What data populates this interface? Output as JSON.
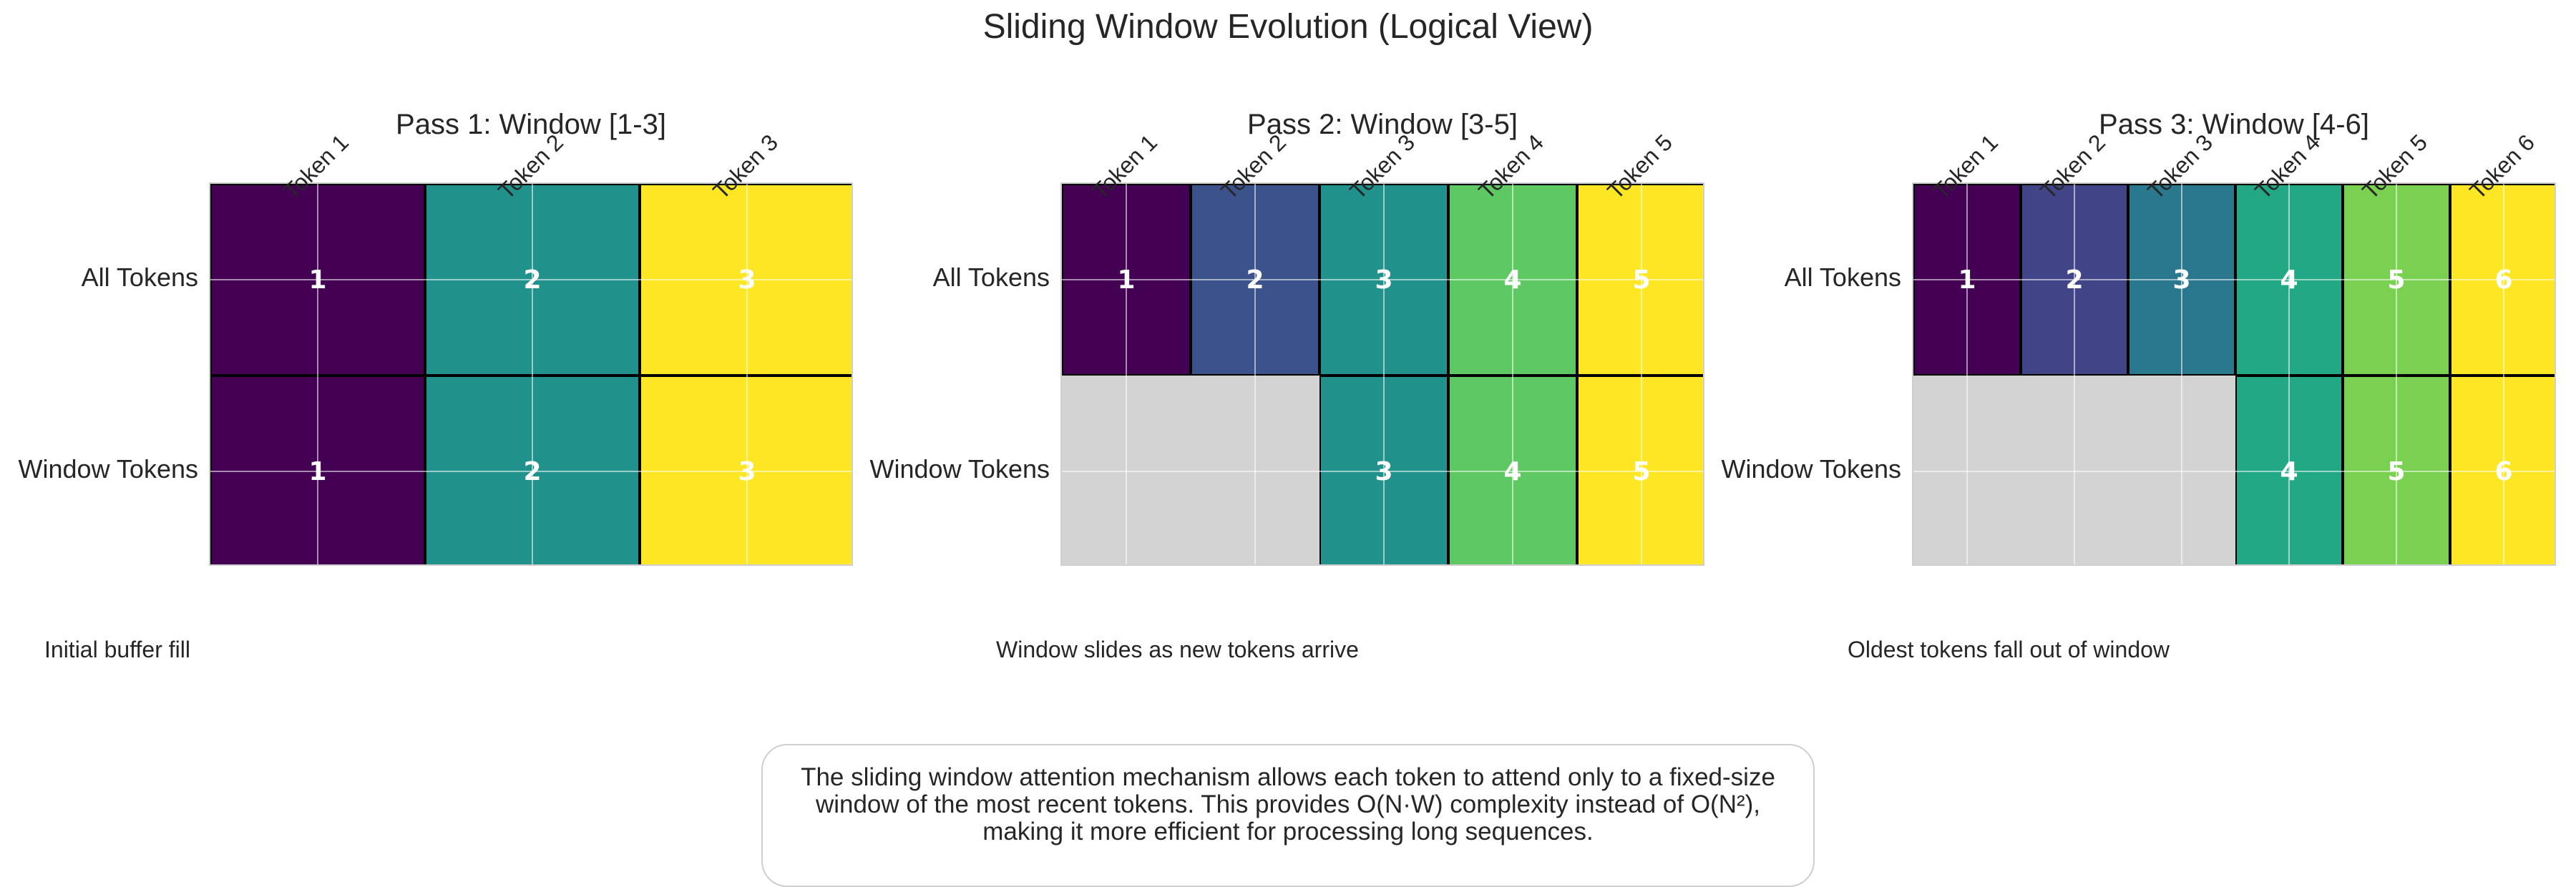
{
  "chart_data": {
    "type": "heatmap",
    "title": "Sliding Window Evolution (Logical View)",
    "note_lines": [
      "The sliding window attention mechanism allows each token to attend only to a fixed-size",
      "window of the most recent tokens. This provides O(N·W) complexity instead of O(N²),",
      "making it more efficient for processing long sequences."
    ],
    "panels": [
      {
        "title": "Pass 1: Window [1-3]",
        "caption": "Initial buffer fill",
        "row_labels": [
          "All Tokens",
          "Window Tokens"
        ],
        "x_tick_labels": [
          "Token 1",
          "Token 2",
          "Token 3"
        ],
        "rows": [
          [
            1,
            2,
            3
          ],
          [
            1,
            2,
            3
          ]
        ],
        "colors": [
          "#440154",
          "#21918c",
          "#fde725"
        ]
      },
      {
        "title": "Pass 2: Window [3-5]",
        "caption": "Window slides as new tokens arrive",
        "row_labels": [
          "All Tokens",
          "Window Tokens"
        ],
        "x_tick_labels": [
          "Token 1",
          "Token 2",
          "Token 3",
          "Token 4",
          "Token 5"
        ],
        "rows": [
          [
            1,
            2,
            3,
            4,
            5
          ],
          [
            null,
            null,
            3,
            4,
            5
          ]
        ],
        "colors": [
          "#440154",
          "#3b528b",
          "#21918c",
          "#5ec962",
          "#fde725"
        ]
      },
      {
        "title": "Pass 3: Window [4-6]",
        "caption": "Oldest tokens fall out of window",
        "row_labels": [
          "All Tokens",
          "Window Tokens"
        ],
        "x_tick_labels": [
          "Token 1",
          "Token 2",
          "Token 3",
          "Token 4",
          "Token 5",
          "Token 6"
        ],
        "rows": [
          [
            1,
            2,
            3,
            4,
            5,
            6
          ],
          [
            null,
            null,
            null,
            4,
            5,
            6
          ]
        ],
        "colors": [
          "#440154",
          "#414487",
          "#2a788e",
          "#22a884",
          "#7ad151",
          "#fde725"
        ]
      }
    ]
  }
}
